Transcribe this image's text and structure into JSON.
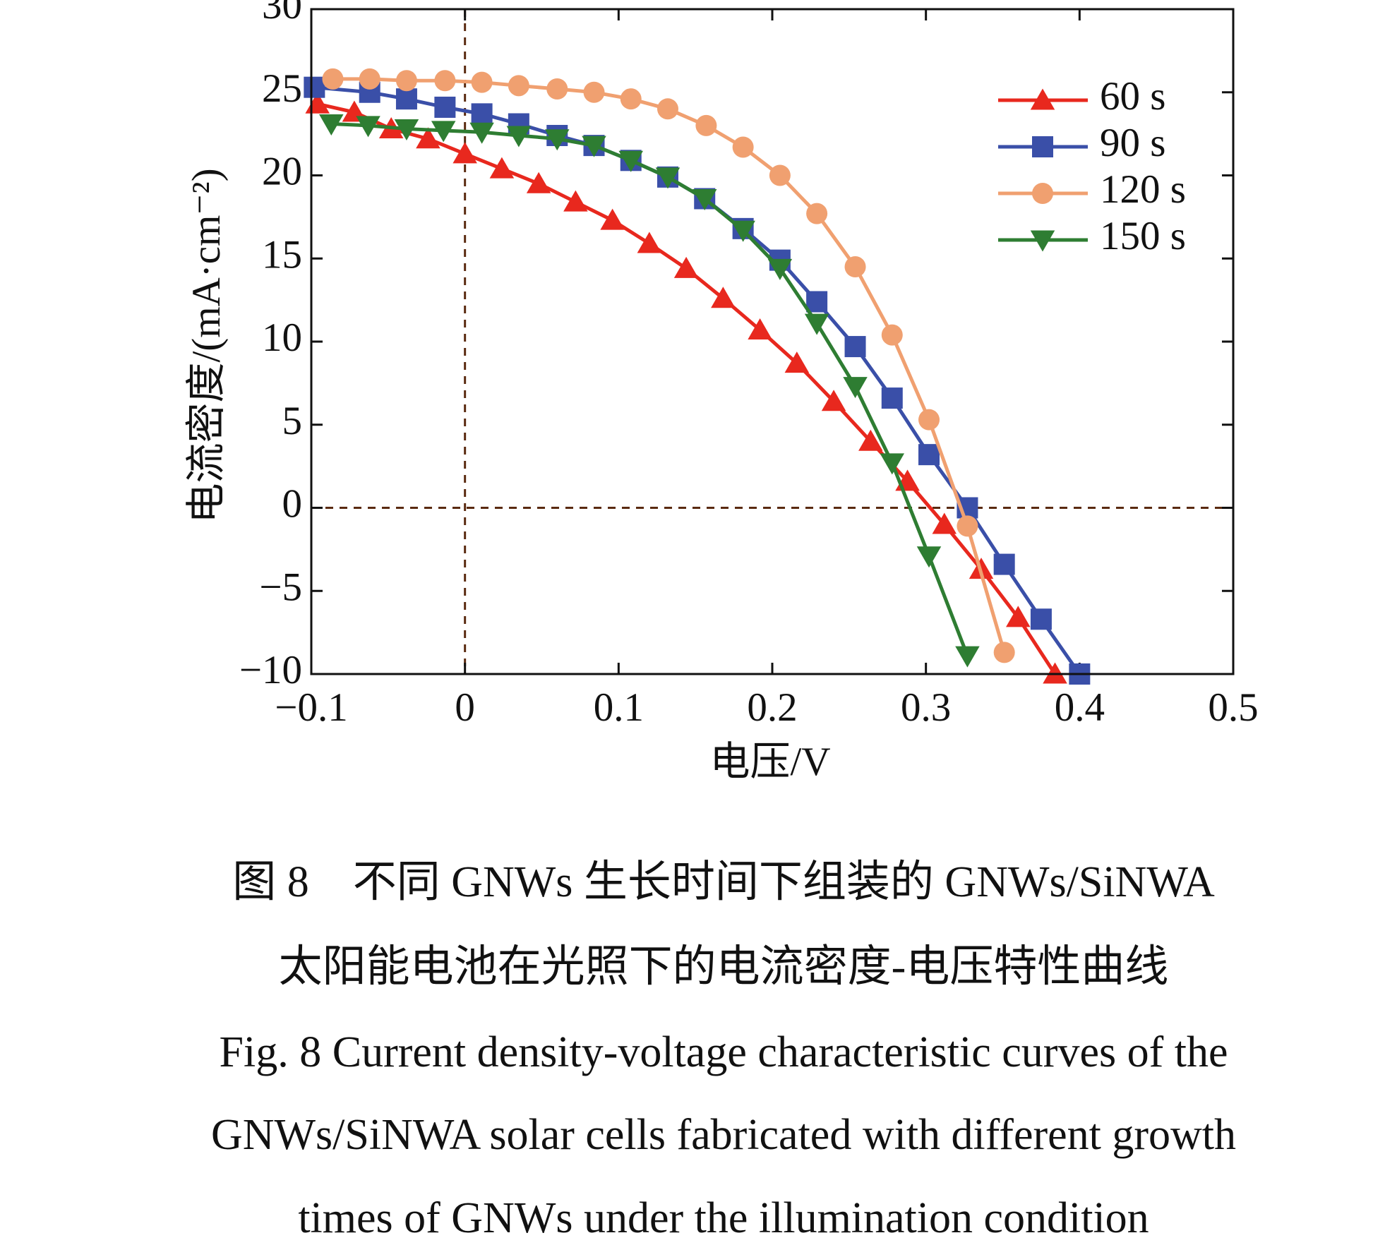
{
  "chart_data": {
    "type": "line",
    "xlabel": "电压/V",
    "ylabel": "电流密度/(mA·cm⁻²)",
    "xlim": [
      -0.1,
      0.5
    ],
    "ylim": [
      -10,
      30
    ],
    "xticks": [
      {
        "value": -0.1,
        "label": "−0.1"
      },
      0,
      0.1,
      0.2,
      0.3,
      0.4,
      0.5
    ],
    "yticks": [
      {
        "value": -10,
        "label": "−10"
      },
      {
        "value": -5,
        "label": "−5"
      },
      0,
      5,
      10,
      15,
      20,
      25,
      30
    ],
    "reference_lines": {
      "x": 0,
      "y": 0
    },
    "legend": "upper right",
    "series": [
      {
        "name": "60 s",
        "color": "#e8281e",
        "marker": "triangle-up",
        "x": [
          -0.096,
          -0.072,
          -0.048,
          -0.024,
          0.0,
          0.024,
          0.048,
          0.072,
          0.096,
          0.12,
          0.144,
          0.168,
          0.192,
          0.216,
          0.24,
          0.264,
          0.288,
          0.312,
          0.336,
          0.36,
          0.384
        ],
        "values": [
          24.3,
          23.8,
          22.8,
          22.2,
          21.3,
          20.4,
          19.5,
          18.4,
          17.3,
          15.9,
          14.4,
          12.6,
          10.7,
          8.7,
          6.4,
          4.0,
          1.6,
          -1.0,
          -3.7,
          -6.6,
          -10
        ]
      },
      {
        "name": "90 s",
        "color": "#3a4fa8",
        "marker": "square",
        "x": [
          -0.098,
          -0.062,
          -0.038,
          -0.013,
          0.011,
          0.035,
          0.06,
          0.084,
          0.108,
          0.132,
          0.156,
          0.181,
          0.205,
          0.229,
          0.254,
          0.278,
          0.302,
          0.327,
          0.351,
          0.375,
          0.4
        ],
        "values": [
          25.3,
          25.0,
          24.6,
          24.1,
          23.7,
          23.1,
          22.4,
          21.8,
          20.9,
          19.9,
          18.6,
          16.8,
          14.9,
          12.4,
          9.7,
          6.6,
          3.2,
          0,
          -3.4,
          -6.7,
          -10
        ]
      },
      {
        "name": "120 s",
        "color": "#f0a070",
        "marker": "circle",
        "x": [
          -0.086,
          -0.062,
          -0.038,
          -0.013,
          0.011,
          0.035,
          0.06,
          0.084,
          0.108,
          0.132,
          0.157,
          0.181,
          0.205,
          0.229,
          0.254,
          0.278,
          0.302,
          0.327,
          0.351
        ],
        "values": [
          25.8,
          25.8,
          25.7,
          25.7,
          25.6,
          25.4,
          25.2,
          25.0,
          24.6,
          24.0,
          23.0,
          21.7,
          20.0,
          17.7,
          14.5,
          10.4,
          5.3,
          -1.1,
          -8.7
        ]
      },
      {
        "name": "150 s",
        "color": "#2e7d32",
        "marker": "triangle-down",
        "x": [
          -0.087,
          -0.063,
          -0.038,
          -0.014,
          0.011,
          0.035,
          0.06,
          0.084,
          0.108,
          0.132,
          0.156,
          0.181,
          0.205,
          0.229,
          0.254,
          0.278,
          0.302,
          0.327
        ],
        "values": [
          23.1,
          23.0,
          22.8,
          22.7,
          22.6,
          22.4,
          22.2,
          21.8,
          20.9,
          19.9,
          18.6,
          16.7,
          14.4,
          11.1,
          7.3,
          2.7,
          -2.9,
          -8.9
        ]
      }
    ]
  },
  "caption": [
    "图 8　不同 GNWs 生长时间下组装的 GNWs/SiNWA",
    "太阳能电池在光照下的电流密度-电压特性曲线",
    "Fig. 8  Current density-voltage characteristic curves of the",
    "GNWs/SiNWA solar cells fabricated with different growth",
    "times of GNWs under the illumination condition"
  ]
}
